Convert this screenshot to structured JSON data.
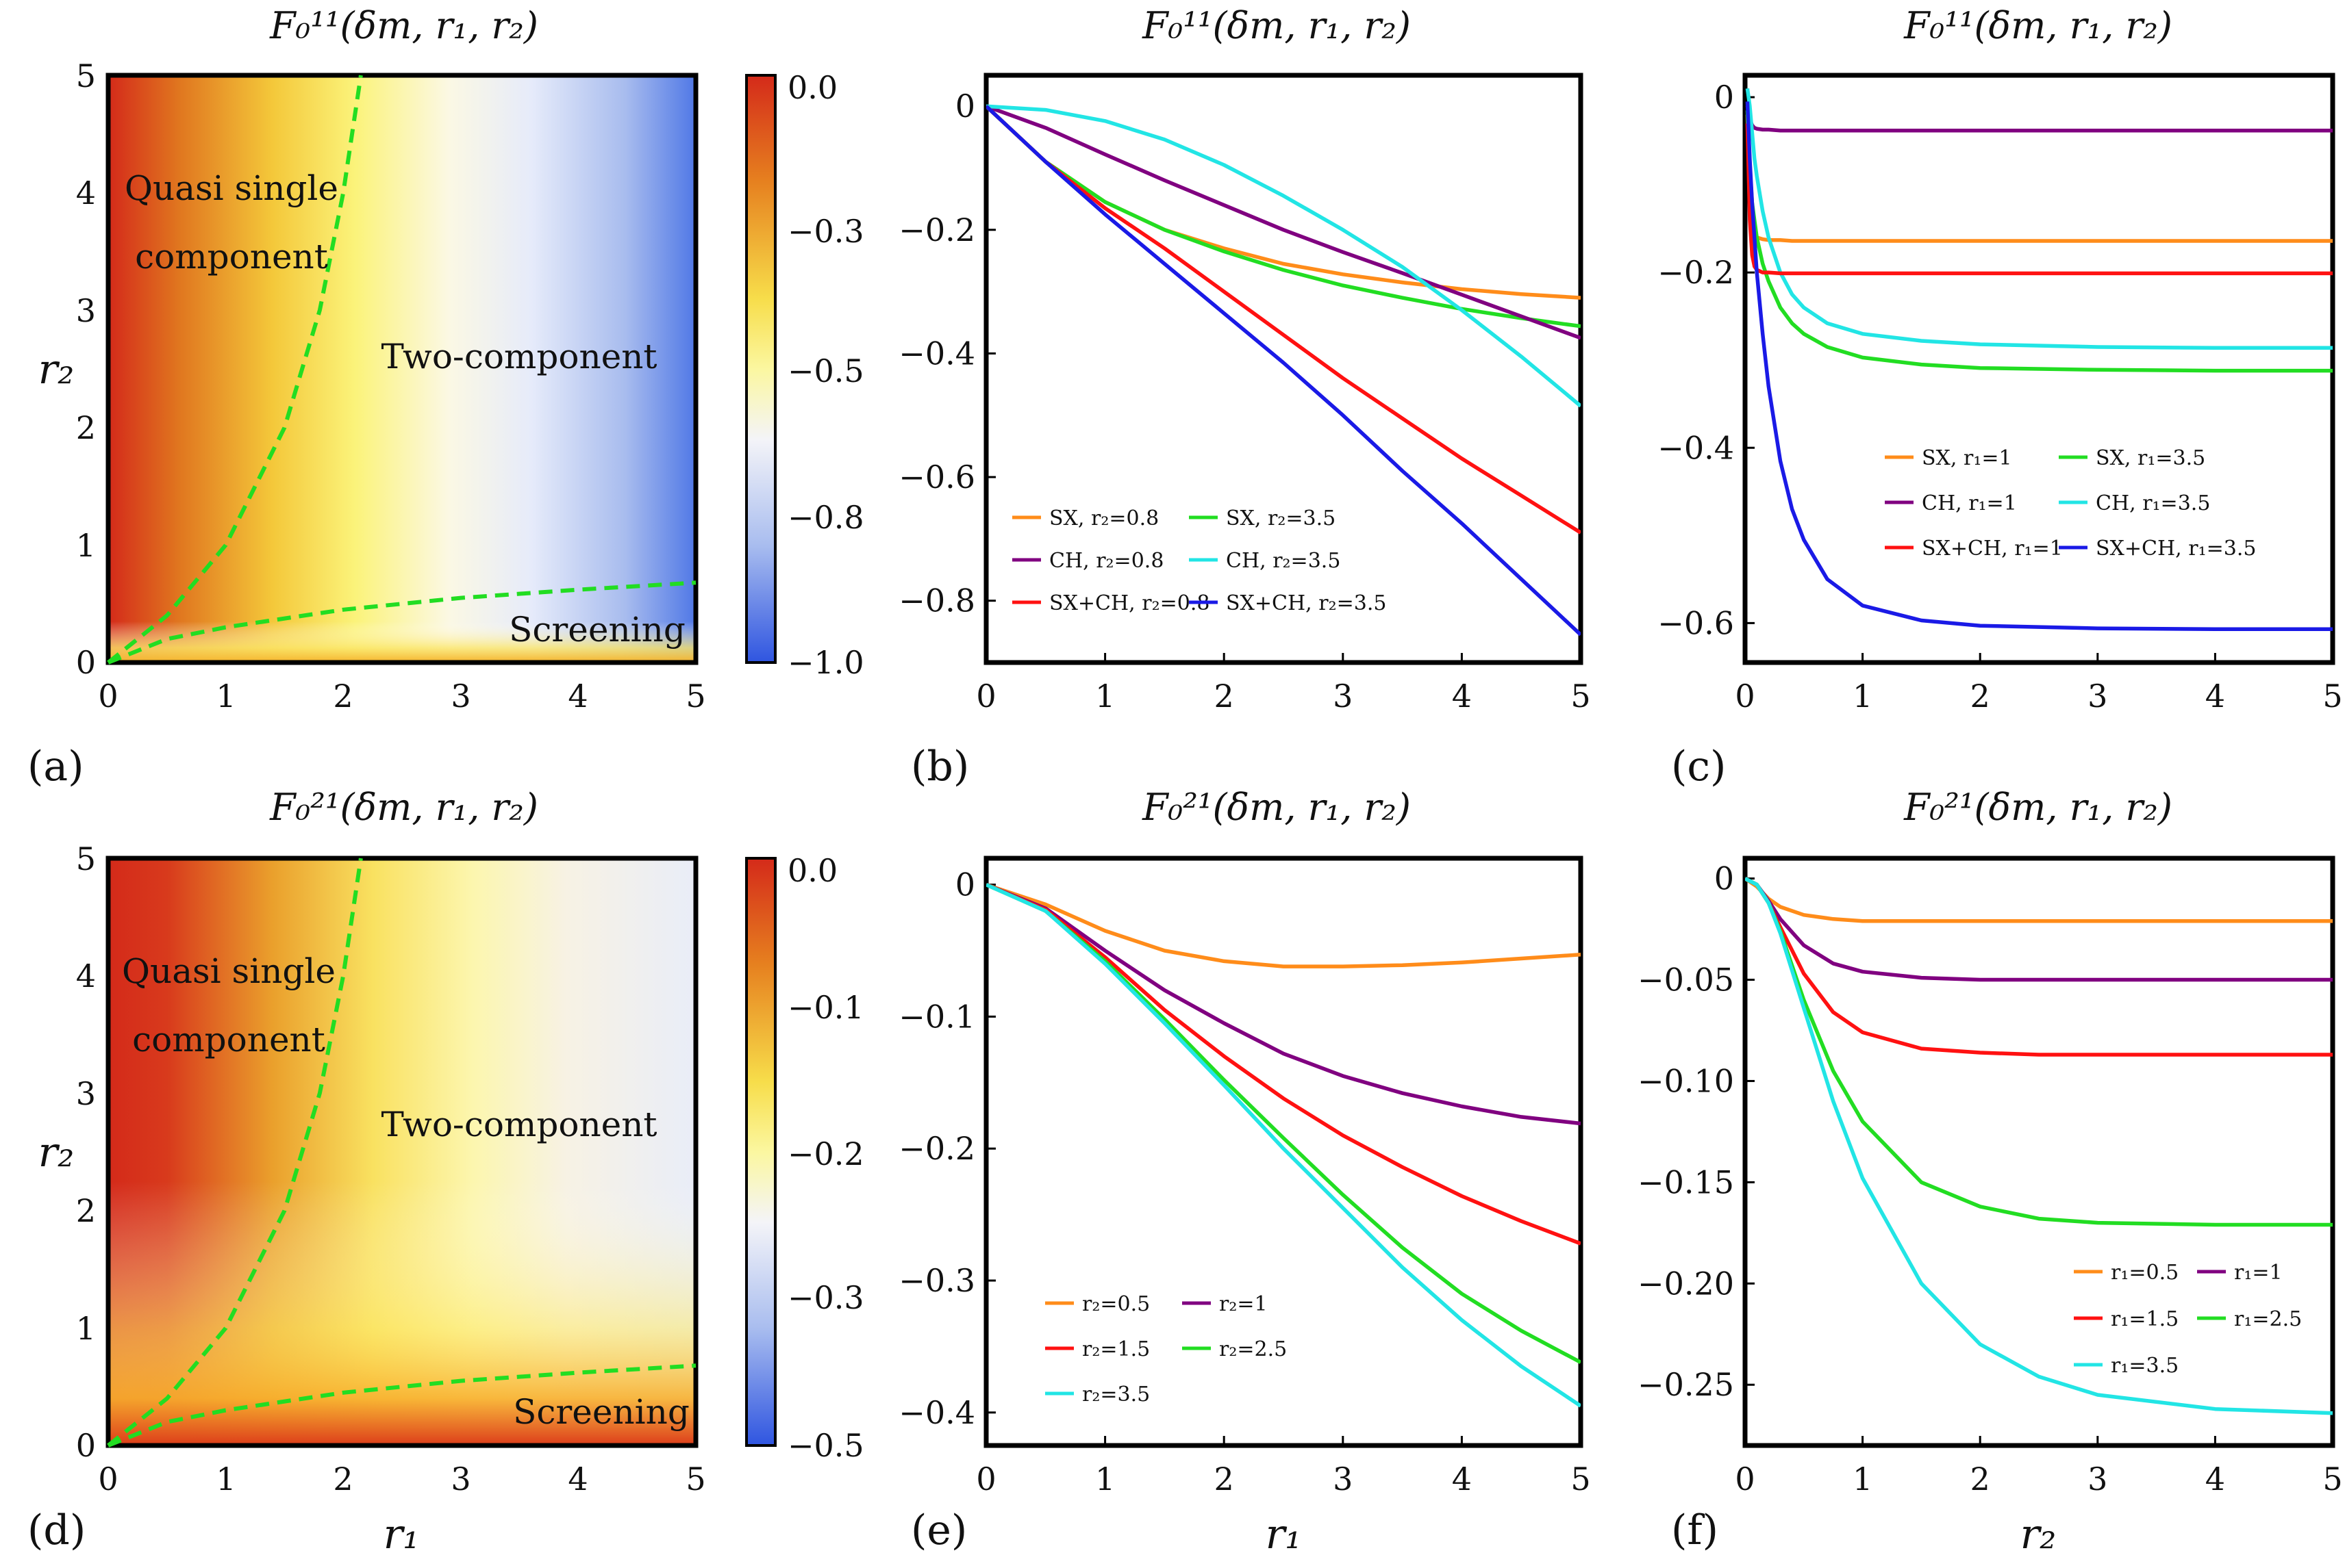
{
  "chart_data": [
    {
      "id": "a",
      "type": "heatmap",
      "panel_label": "(a)",
      "title": "F₀¹¹(δm, r₁, r₂)",
      "xlabel": "",
      "ylabel": "r₂",
      "xlim": [
        0,
        5
      ],
      "ylim": [
        0,
        5
      ],
      "x_ticks": [
        "0",
        "1",
        "2",
        "3",
        "4",
        "5"
      ],
      "y_ticks": [
        "0",
        "1",
        "2",
        "3",
        "4",
        "5"
      ],
      "colorbar": {
        "range": [
          -1.0,
          0.0
        ],
        "ticks": [
          "0.0",
          "−0.3",
          "−0.5",
          "−0.8",
          "−1.0"
        ],
        "tick_values": [
          0.0,
          -0.3,
          -0.5,
          -0.8,
          -1.0
        ]
      },
      "regions": [
        {
          "text": "Quasi single",
          "r1": 1.05,
          "r2": 4.2
        },
        {
          "text": "component",
          "r1": 1.05,
          "r2": 3.55
        },
        {
          "text": "Two-component",
          "r1": 3.5,
          "r2": 2.6
        },
        {
          "text": "Screening",
          "r1": 4.2,
          "r2": 0.28
        }
      ],
      "boundaries": [
        {
          "name": "upper",
          "x": [
            0,
            0.5,
            1.0,
            1.5,
            1.8,
            2.0,
            2.15
          ],
          "y": [
            0,
            0.4,
            1.0,
            2.0,
            3.0,
            4.0,
            5.0
          ]
        },
        {
          "name": "lower",
          "x": [
            0,
            0.5,
            1.0,
            2.0,
            3.0,
            4.0,
            5.0
          ],
          "y": [
            0,
            0.2,
            0.3,
            0.45,
            0.55,
            0.62,
            0.68
          ]
        }
      ]
    },
    {
      "id": "b",
      "type": "line",
      "panel_label": "(b)",
      "title": "F₀¹¹(δm, r₁, r₂)",
      "xlabel": "",
      "ylabel": "",
      "xlim": [
        0,
        5
      ],
      "ylim": [
        -0.9,
        0.05
      ],
      "x_ticks": [
        "0",
        "1",
        "2",
        "3",
        "4",
        "5"
      ],
      "y_ticks": [
        "0",
        "−0.2",
        "−0.4",
        "−0.6",
        "−0.8"
      ],
      "y_tick_values": [
        0,
        -0.2,
        -0.4,
        -0.6,
        -0.8
      ],
      "legend": {
        "columns": 2,
        "placement": "bottom-left"
      },
      "x": [
        0,
        0.5,
        1,
        1.5,
        2,
        2.5,
        3,
        3.5,
        4,
        4.5,
        5
      ],
      "series": [
        {
          "name": "SX, r₂=0.8",
          "color": "#ff8c1a",
          "values": [
            0,
            -0.09,
            -0.155,
            -0.2,
            -0.23,
            -0.255,
            -0.272,
            -0.285,
            -0.296,
            -0.304,
            -0.31
          ]
        },
        {
          "name": "SX, r₂=3.5",
          "color": "#22dd22",
          "values": [
            0,
            -0.09,
            -0.155,
            -0.2,
            -0.235,
            -0.265,
            -0.29,
            -0.31,
            -0.328,
            -0.343,
            -0.356
          ]
        },
        {
          "name": "CH, r₂=0.8",
          "color": "#800080",
          "values": [
            0,
            -0.035,
            -0.078,
            -0.12,
            -0.16,
            -0.2,
            -0.236,
            -0.27,
            -0.305,
            -0.34,
            -0.375
          ]
        },
        {
          "name": "CH, r₂=3.5",
          "color": "#22e5e5",
          "values": [
            0,
            -0.006,
            -0.024,
            -0.054,
            -0.095,
            -0.145,
            -0.2,
            -0.26,
            -0.33,
            -0.405,
            -0.485
          ]
        },
        {
          "name": "SX+CH, r₂=0.8",
          "color": "#ff1111",
          "values": [
            0,
            -0.09,
            -0.165,
            -0.23,
            -0.3,
            -0.37,
            -0.44,
            -0.505,
            -0.57,
            -0.63,
            -0.69
          ]
        },
        {
          "name": "SX+CH, r₂=3.5",
          "color": "#1a1ae6",
          "values": [
            0,
            -0.09,
            -0.175,
            -0.255,
            -0.335,
            -0.415,
            -0.5,
            -0.59,
            -0.675,
            -0.765,
            -0.855
          ]
        }
      ]
    },
    {
      "id": "c",
      "type": "line",
      "panel_label": "(c)",
      "title": "F₀¹¹(δm, r₁, r₂)",
      "xlabel": "",
      "ylabel": "",
      "xlim": [
        0,
        5
      ],
      "ylim": [
        -0.645,
        0.025
      ],
      "x_ticks": [
        "0",
        "1",
        "2",
        "3",
        "4",
        "5"
      ],
      "y_ticks": [
        "0",
        "−0.2",
        "−0.4",
        "−0.6"
      ],
      "y_tick_values": [
        0,
        -0.2,
        -0.4,
        -0.6
      ],
      "legend": {
        "columns": 2,
        "placement": "center-right"
      },
      "x": [
        0.02,
        0.04,
        0.06,
        0.08,
        0.1,
        0.15,
        0.2,
        0.3,
        0.4,
        0.5,
        0.7,
        1.0,
        1.5,
        2.0,
        3.0,
        4.0,
        5.0
      ],
      "series": [
        {
          "name": "SX, r₁=1",
          "color": "#ff8c1a",
          "values": [
            -0.02,
            -0.12,
            -0.15,
            -0.158,
            -0.16,
            -0.162,
            -0.163,
            -0.163,
            -0.164,
            -0.164,
            -0.164,
            -0.164,
            -0.164,
            -0.164,
            -0.164,
            -0.164,
            -0.164
          ]
        },
        {
          "name": "SX, r₁=3.5",
          "color": "#22dd22",
          "values": [
            -0.015,
            -0.08,
            -0.12,
            -0.14,
            -0.16,
            -0.19,
            -0.21,
            -0.24,
            -0.258,
            -0.27,
            -0.285,
            -0.297,
            -0.305,
            -0.309,
            -0.311,
            -0.312,
            -0.312
          ]
        },
        {
          "name": "CH, r₁=1",
          "color": "#800080",
          "values": [
            -0.01,
            -0.025,
            -0.032,
            -0.035,
            -0.036,
            -0.037,
            -0.037,
            -0.038,
            -0.038,
            -0.038,
            -0.038,
            -0.038,
            -0.038,
            -0.038,
            -0.038,
            -0.038,
            -0.038
          ]
        },
        {
          "name": "CH, r₁=3.5",
          "color": "#22e5e5",
          "values": [
            0.01,
            -0.01,
            -0.04,
            -0.07,
            -0.09,
            -0.13,
            -0.16,
            -0.2,
            -0.225,
            -0.24,
            -0.258,
            -0.27,
            -0.278,
            -0.282,
            -0.285,
            -0.286,
            -0.286
          ]
        },
        {
          "name": "SX+CH, r₁=1",
          "color": "#ff1111",
          "values": [
            -0.03,
            -0.14,
            -0.18,
            -0.193,
            -0.197,
            -0.2,
            -0.2,
            -0.201,
            -0.201,
            -0.201,
            -0.201,
            -0.201,
            -0.201,
            -0.201,
            -0.201,
            -0.201,
            -0.201
          ]
        },
        {
          "name": "SX+CH, r₁=3.5",
          "color": "#1a1ae6",
          "values": [
            -0.005,
            -0.07,
            -0.12,
            -0.16,
            -0.2,
            -0.27,
            -0.33,
            -0.415,
            -0.47,
            -0.505,
            -0.55,
            -0.58,
            -0.597,
            -0.603,
            -0.606,
            -0.607,
            -0.607
          ]
        }
      ]
    },
    {
      "id": "d",
      "type": "heatmap",
      "panel_label": "(d)",
      "title": "F₀²¹(δm, r₁, r₂)",
      "xlabel": "r₁",
      "ylabel": "r₂",
      "xlim": [
        0,
        5
      ],
      "ylim": [
        0,
        5
      ],
      "x_ticks": [
        "0",
        "1",
        "2",
        "3",
        "4",
        "5"
      ],
      "y_ticks": [
        "0",
        "1",
        "2",
        "3",
        "4",
        "5"
      ],
      "colorbar": {
        "range": [
          -0.5,
          0.0
        ],
        "ticks": [
          "0.0",
          "−0.1",
          "−0.2",
          "−0.3",
          "−0.5"
        ],
        "tick_values": [
          0.0,
          -0.1,
          -0.2,
          -0.3,
          -0.5
        ]
      },
      "regions": [
        {
          "text": "Quasi single",
          "r1": 1.05,
          "r2": 4.2
        },
        {
          "text": "component",
          "r1": 1.05,
          "r2": 3.55
        },
        {
          "text": "Two-component",
          "r1": 3.5,
          "r2": 2.6
        },
        {
          "text": "Screening",
          "r1": 4.2,
          "r2": 0.28
        }
      ],
      "boundaries": [
        {
          "name": "upper",
          "x": [
            0,
            0.5,
            1.0,
            1.5,
            1.8,
            2.0,
            2.15
          ],
          "y": [
            0,
            0.4,
            1.0,
            2.0,
            3.0,
            4.0,
            5.0
          ]
        },
        {
          "name": "lower",
          "x": [
            0,
            0.5,
            1.0,
            2.0,
            3.0,
            4.0,
            5.0
          ],
          "y": [
            0,
            0.2,
            0.3,
            0.45,
            0.55,
            0.62,
            0.68
          ]
        }
      ]
    },
    {
      "id": "e",
      "type": "line",
      "panel_label": "(e)",
      "title": "F₀²¹(δm, r₁, r₂)",
      "xlabel": "r₁",
      "ylabel": "",
      "xlim": [
        0,
        5
      ],
      "ylim": [
        -0.425,
        0.02
      ],
      "x_ticks": [
        "0",
        "1",
        "2",
        "3",
        "4",
        "5"
      ],
      "y_ticks": [
        "0",
        "−0.1",
        "−0.2",
        "−0.3",
        "−0.4"
      ],
      "y_tick_values": [
        0,
        -0.1,
        -0.2,
        -0.3,
        -0.4
      ],
      "legend": {
        "columns": 2,
        "placement": "bottom-left"
      },
      "x": [
        0,
        0.5,
        1,
        1.5,
        2,
        2.5,
        3,
        3.5,
        4,
        4.5,
        5
      ],
      "series": [
        {
          "name": "r₂=0.5",
          "color": "#ff8c1a",
          "values": [
            0,
            -0.015,
            -0.035,
            -0.05,
            -0.058,
            -0.062,
            -0.062,
            -0.061,
            -0.059,
            -0.056,
            -0.053
          ]
        },
        {
          "name": "r₂=1",
          "color": "#800080",
          "values": [
            0,
            -0.018,
            -0.05,
            -0.08,
            -0.105,
            -0.128,
            -0.145,
            -0.158,
            -0.168,
            -0.176,
            -0.181
          ]
        },
        {
          "name": "r₂=1.5",
          "color": "#ff1111",
          "values": [
            0,
            -0.019,
            -0.055,
            -0.095,
            -0.13,
            -0.162,
            -0.19,
            -0.214,
            -0.236,
            -0.255,
            -0.272
          ]
        },
        {
          "name": "r₂=2.5",
          "color": "#22dd22",
          "values": [
            0,
            -0.02,
            -0.058,
            -0.102,
            -0.148,
            -0.192,
            -0.235,
            -0.275,
            -0.31,
            -0.338,
            -0.362
          ]
        },
        {
          "name": "r₂=3.5",
          "color": "#22e5e5",
          "values": [
            0,
            -0.02,
            -0.06,
            -0.105,
            -0.152,
            -0.2,
            -0.245,
            -0.29,
            -0.33,
            -0.365,
            -0.395
          ]
        }
      ]
    },
    {
      "id": "f",
      "type": "line",
      "panel_label": "(f)",
      "title": "F₀²¹(δm, r₁, r₂)",
      "xlabel": "r₂",
      "ylabel": "",
      "xlim": [
        0,
        5
      ],
      "ylim": [
        -0.28,
        0.01
      ],
      "x_ticks": [
        "0",
        "1",
        "2",
        "3",
        "4",
        "5"
      ],
      "y_ticks": [
        "0",
        "−0.05",
        "−0.10",
        "−0.15",
        "−0.20",
        "−0.25"
      ],
      "y_tick_values": [
        0,
        -0.05,
        -0.1,
        -0.15,
        -0.2,
        -0.25
      ],
      "legend": {
        "columns": 2,
        "placement": "bottom-right"
      },
      "x": [
        0,
        0.1,
        0.2,
        0.3,
        0.5,
        0.75,
        1,
        1.5,
        2,
        2.5,
        3,
        4,
        5
      ],
      "series": [
        {
          "name": "r₁=0.5",
          "color": "#ff8c1a",
          "values": [
            0,
            -0.004,
            -0.01,
            -0.014,
            -0.018,
            -0.02,
            -0.021,
            -0.021,
            -0.021,
            -0.021,
            -0.021,
            -0.021,
            -0.021
          ]
        },
        {
          "name": "r₁=1",
          "color": "#800080",
          "values": [
            0,
            -0.003,
            -0.011,
            -0.02,
            -0.033,
            -0.042,
            -0.046,
            -0.049,
            -0.05,
            -0.05,
            -0.05,
            -0.05,
            -0.05
          ]
        },
        {
          "name": "r₁=1.5",
          "color": "#ff1111",
          "values": [
            0,
            -0.003,
            -0.012,
            -0.024,
            -0.047,
            -0.066,
            -0.076,
            -0.084,
            -0.086,
            -0.087,
            -0.087,
            -0.087,
            -0.087
          ]
        },
        {
          "name": "r₁=2.5",
          "color": "#22dd22",
          "values": [
            0,
            -0.003,
            -0.012,
            -0.026,
            -0.06,
            -0.095,
            -0.12,
            -0.15,
            -0.162,
            -0.168,
            -0.17,
            -0.171,
            -0.171
          ]
        },
        {
          "name": "r₁=3.5",
          "color": "#22e5e5",
          "values": [
            0,
            -0.003,
            -0.012,
            -0.027,
            -0.064,
            -0.11,
            -0.148,
            -0.2,
            -0.23,
            -0.246,
            -0.255,
            -0.262,
            -0.264
          ]
        }
      ]
    }
  ]
}
